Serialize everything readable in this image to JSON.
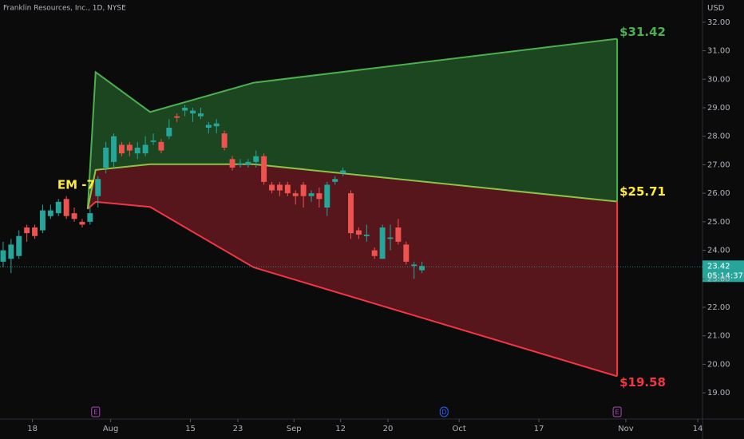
{
  "chart_data": {
    "type": "candlestick",
    "title": "Franklin Resources, Inc., 1D, NYSE",
    "currency": "USD",
    "xlim": [
      -0.4,
      88.5
    ],
    "ylim": [
      18.08,
      32.78
    ],
    "yticks": [
      {
        "value": 19,
        "label": "19.00"
      },
      {
        "value": 20,
        "label": "20.00"
      },
      {
        "value": 21,
        "label": "21.00"
      },
      {
        "value": 22,
        "label": "22.00"
      },
      {
        "value": 23,
        "label": "23.00"
      },
      {
        "value": 24,
        "label": "24.00"
      },
      {
        "value": 25,
        "label": "25.00"
      },
      {
        "value": 26,
        "label": "26.00"
      },
      {
        "value": 27,
        "label": "27.00"
      },
      {
        "value": 28,
        "label": "28.00"
      },
      {
        "value": 29,
        "label": "29.00"
      },
      {
        "value": 30,
        "label": "30.00"
      },
      {
        "value": 31,
        "label": "31.00"
      },
      {
        "value": 32,
        "label": "32.00"
      }
    ],
    "xticks": [
      {
        "value": 3.7,
        "label": "18"
      },
      {
        "value": 13.6,
        "label": "Aug"
      },
      {
        "value": 23.7,
        "label": "15"
      },
      {
        "value": 29.7,
        "label": "23"
      },
      {
        "value": 36.8,
        "label": "Sep"
      },
      {
        "value": 42.7,
        "label": "12"
      },
      {
        "value": 48.7,
        "label": "20"
      },
      {
        "value": 57.7,
        "label": "Oct"
      },
      {
        "value": 67.8,
        "label": "17"
      },
      {
        "value": 78.8,
        "label": "Nov"
      },
      {
        "value": 87.9,
        "label": "14"
      }
    ],
    "up_color": "#26a69a",
    "down_color": "#ef5350",
    "x": [
      0,
      1,
      2,
      3,
      4,
      5,
      6,
      7,
      8,
      9,
      10,
      11,
      12,
      13,
      14,
      15,
      16,
      17,
      18,
      19,
      20,
      21,
      22,
      23,
      24,
      25,
      26,
      27,
      28,
      29,
      30,
      31,
      32,
      33,
      34,
      35,
      36,
      37,
      38,
      39,
      40,
      41,
      42,
      43,
      44,
      45,
      46,
      47,
      48,
      49,
      50,
      51,
      52,
      53
    ],
    "open": [
      23.6,
      23.7,
      23.8,
      24.8,
      24.8,
      24.7,
      25.2,
      25.3,
      25.8,
      25.3,
      25.0,
      25.0,
      25.9,
      26.9,
      27.1,
      27.7,
      27.7,
      27.4,
      27.4,
      27.8,
      27.8,
      28.0,
      28.7,
      28.9,
      28.8,
      28.7,
      28.3,
      28.35,
      28.1,
      27.2,
      27.0,
      27.0,
      27.1,
      27.3,
      26.3,
      26.3,
      26.3,
      26.0,
      26.3,
      25.9,
      26.0,
      25.5,
      26.4,
      26.7,
      26.0,
      24.7,
      24.5,
      24.0,
      23.7,
      24.4,
      24.8,
      24.2,
      23.45,
      23.3
    ],
    "high": [
      24.3,
      24.4,
      24.7,
      24.9,
      24.9,
      25.6,
      25.6,
      25.8,
      25.9,
      25.5,
      25.1,
      25.5,
      26.6,
      27.8,
      28.1,
      27.8,
      27.8,
      27.8,
      28.0,
      28.1,
      27.9,
      28.6,
      28.8,
      29.1,
      29.0,
      29.0,
      28.5,
      28.6,
      28.2,
      27.3,
      27.2,
      27.2,
      27.5,
      27.4,
      26.4,
      26.4,
      26.4,
      26.1,
      26.4,
      26.1,
      26.2,
      26.4,
      26.6,
      26.9,
      26.1,
      24.8,
      24.9,
      24.1,
      24.9,
      24.9,
      25.1,
      24.3,
      23.6,
      23.6
    ],
    "low": [
      23.4,
      23.2,
      23.7,
      24.3,
      24.4,
      24.6,
      25.1,
      25.2,
      25.1,
      25.0,
      24.8,
      24.9,
      25.5,
      26.7,
      26.9,
      27.3,
      27.3,
      27.2,
      27.3,
      27.7,
      27.4,
      27.9,
      28.5,
      28.7,
      28.5,
      28.6,
      28.1,
      28.1,
      27.5,
      26.8,
      26.9,
      26.9,
      26.9,
      26.3,
      26.0,
      25.9,
      25.9,
      25.6,
      25.5,
      25.7,
      25.5,
      25.2,
      26.3,
      26.6,
      24.4,
      24.4,
      24.3,
      23.7,
      23.7,
      24.0,
      24.2,
      23.5,
      23.0,
      23.2
    ],
    "close": [
      24.0,
      24.2,
      24.5,
      24.6,
      24.5,
      25.4,
      25.4,
      25.7,
      25.2,
      25.1,
      24.9,
      25.3,
      26.5,
      27.6,
      28.0,
      27.4,
      27.5,
      27.6,
      27.7,
      27.85,
      27.5,
      28.3,
      28.65,
      29.0,
      28.9,
      28.8,
      28.4,
      28.45,
      27.6,
      26.9,
      27.05,
      27.1,
      27.3,
      26.4,
      26.1,
      26.1,
      26.0,
      25.9,
      25.9,
      26.0,
      25.8,
      26.3,
      26.5,
      26.8,
      24.6,
      24.55,
      24.55,
      23.8,
      24.8,
      24.45,
      24.3,
      23.6,
      23.5,
      23.45
    ],
    "last_price": {
      "value": 23.42,
      "label": "23.42",
      "countdown": "05:14:37"
    },
    "expected_move": {
      "annotation": "EM -7",
      "x": [
        10.7,
        11.7,
        18.6,
        31.7,
        77.7
      ],
      "upper": [
        25.45,
        30.25,
        28.85,
        29.88,
        31.42
      ],
      "mid": [
        25.45,
        26.82,
        27.02,
        27.02,
        25.71
      ],
      "lower": [
        25.45,
        25.7,
        25.52,
        23.4,
        19.58
      ],
      "upper_label": "$31.42",
      "mid_label": "$25.71",
      "lower_label": "$19.58",
      "upper_color": "#4caf50",
      "mid_color": "#ffeb3b",
      "lower_color": "#f23645"
    },
    "events": [
      {
        "x": 11.7,
        "label": "E"
      },
      {
        "x": 55.8,
        "label": "D"
      },
      {
        "x": 77.7,
        "label": "E"
      }
    ]
  }
}
